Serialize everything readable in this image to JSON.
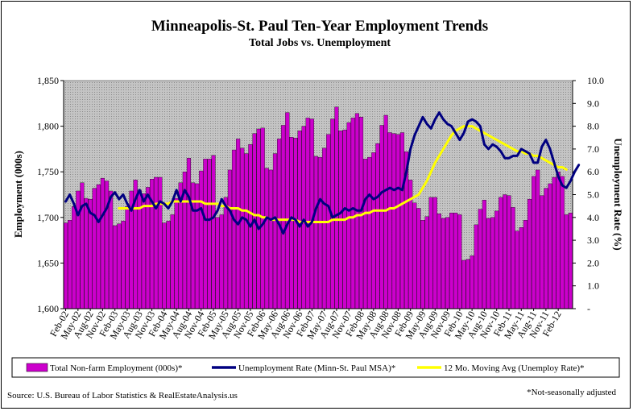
{
  "chart_data": {
    "type": "bar",
    "title": "Minneapolis-St. Paul Ten-Year Employment Trends",
    "subtitle": "Total Jobs vs. Unemployment",
    "ylabel": "Employment (000s)",
    "y2label": "Unemployment Rate (%)",
    "ylim": [
      1600,
      1850
    ],
    "y2lim": [
      0,
      10
    ],
    "yticks": [
      "1,600",
      "1,650",
      "1,700",
      "1,750",
      "1,800",
      "1,850"
    ],
    "y2ticks": [
      "-",
      "1.0",
      "2.0",
      "3.0",
      "4.0",
      "5.0",
      "6.0",
      "7.0",
      "8.0",
      "9.0",
      "10.0"
    ],
    "x_tick_labels": [
      "Feb-02",
      "May-02",
      "Aug-02",
      "Nov-02",
      "Feb-03",
      "May-03",
      "Aug-03",
      "Nov-03",
      "Feb-04",
      "May-04",
      "Aug-04",
      "Nov-04",
      "Feb-05",
      "May-05",
      "Aug-05",
      "Nov-05",
      "Feb-06",
      "May-06",
      "Aug-06",
      "Nov-06",
      "Feb-07",
      "May-07",
      "Aug-07",
      "Nov-07",
      "Feb-08",
      "May-08",
      "Aug-08",
      "Nov-08",
      "Feb-09",
      "May-09",
      "Aug-09",
      "Nov-09",
      "Feb-10",
      "May-10",
      "Aug-10",
      "Nov-10",
      "Feb-11",
      "May-11",
      "Aug-11",
      "Nov-11",
      "Feb-12"
    ],
    "legend_position": "bottom",
    "plot_background": "#c0c0c0",
    "series": [
      {
        "name": "Total Non-farm Employment (000s)*",
        "kind": "bar",
        "color": "#cc00cc",
        "values": [
          1694,
          1697,
          1712,
          1729,
          1738,
          1721,
          1720,
          1732,
          1736,
          1743,
          1740,
          1729,
          1691,
          1693,
          1696,
          1712,
          1729,
          1741,
          1730,
          1726,
          1733,
          1742,
          1744,
          1744,
          1694,
          1696,
          1703,
          1721,
          1738,
          1750,
          1765,
          1738,
          1737,
          1751,
          1764,
          1764,
          1768,
          1700,
          1703,
          1722,
          1752,
          1774,
          1786,
          1776,
          1770,
          1780,
          1792,
          1797,
          1798,
          1754,
          1752,
          1770,
          1786,
          1801,
          1815,
          1788,
          1787,
          1795,
          1800,
          1809,
          1808,
          1767,
          1766,
          1776,
          1791,
          1808,
          1821,
          1795,
          1796,
          1804,
          1809,
          1814,
          1810,
          1764,
          1766,
          1771,
          1781,
          1801,
          1812,
          1793,
          1792,
          1791,
          1793,
          1772,
          1741,
          1716,
          1710,
          1697,
          1701,
          1722,
          1722,
          1704,
          1699,
          1700,
          1705,
          1705,
          1703,
          1653,
          1654,
          1658,
          1692,
          1709,
          1719,
          1699,
          1700,
          1707,
          1722,
          1725,
          1724,
          1711,
          1685,
          1689,
          1697,
          1720,
          1745,
          1752,
          1724,
          1732,
          1737,
          1744,
          1750,
          1745,
          1703,
          1705
        ]
      },
      {
        "name": "Unemployment Rate (Minn-St. Paul MSA)*",
        "kind": "line",
        "color": "#000080",
        "values": [
          4.7,
          5.0,
          4.6,
          4.1,
          4.5,
          4.6,
          4.2,
          4.1,
          3.8,
          4.1,
          4.4,
          4.9,
          5.1,
          4.8,
          5.0,
          4.6,
          4.3,
          4.8,
          5.2,
          4.7,
          5.0,
          4.7,
          4.4,
          4.7,
          4.6,
          4.4,
          4.7,
          5.2,
          4.7,
          5.2,
          4.9,
          4.3,
          4.3,
          4.4,
          3.9,
          3.9,
          4.0,
          4.3,
          4.8,
          4.5,
          4.3,
          3.9,
          3.7,
          4.0,
          3.9,
          3.6,
          3.9,
          3.5,
          3.7,
          4.0,
          3.9,
          4.0,
          3.7,
          3.3,
          3.7,
          4.0,
          3.9,
          3.6,
          3.9,
          3.6,
          3.8,
          4.4,
          4.8,
          4.6,
          4.5,
          4.0,
          4.1,
          4.2,
          4.4,
          4.3,
          4.4,
          4.3,
          4.3,
          4.8,
          5.0,
          4.8,
          4.9,
          5.1,
          5.2,
          5.3,
          5.2,
          5.3,
          5.2,
          6.0,
          7.0,
          7.6,
          8.0,
          8.4,
          8.1,
          7.9,
          8.3,
          8.6,
          8.3,
          8.1,
          8.0,
          7.7,
          7.4,
          7.7,
          8.2,
          8.3,
          8.2,
          8.0,
          7.2,
          7.0,
          7.2,
          7.1,
          6.9,
          6.6,
          6.6,
          6.7,
          6.7,
          7.0,
          6.9,
          6.8,
          6.4,
          6.4,
          7.1,
          7.4,
          7.0,
          6.4,
          5.8,
          5.4,
          5.3,
          5.6,
          6.0,
          6.3
        ]
      },
      {
        "name": "12 Mo. Moving Avg (Unemploy Rate)*",
        "kind": "line",
        "color": "#ffff00",
        "start_index": 13,
        "values": [
          4.4,
          4.4,
          4.4,
          4.4,
          4.4,
          4.4,
          4.5,
          4.5,
          4.5,
          4.6,
          4.6,
          4.6,
          4.6,
          4.7,
          4.7,
          4.7,
          4.7,
          4.7,
          4.7,
          4.7,
          4.7,
          4.6,
          4.6,
          4.6,
          4.6,
          4.5,
          4.5,
          4.4,
          4.4,
          4.4,
          4.3,
          4.3,
          4.2,
          4.1,
          4.1,
          4.0,
          4.0,
          3.9,
          3.9,
          3.9,
          3.9,
          3.9,
          3.9,
          3.9,
          3.8,
          3.8,
          3.8,
          3.8,
          3.8,
          3.8,
          3.8,
          3.8,
          3.9,
          3.9,
          3.9,
          3.9,
          4.0,
          4.0,
          4.1,
          4.1,
          4.2,
          4.2,
          4.3,
          4.3,
          4.3,
          4.3,
          4.4,
          4.4,
          4.5,
          4.6,
          4.7,
          4.8,
          4.9,
          5.0,
          5.3,
          5.6,
          6.0,
          6.4,
          6.7,
          7.0,
          7.3,
          7.6,
          7.8,
          7.9,
          8.0,
          8.0,
          8.0,
          7.9,
          7.8,
          7.7,
          7.6,
          7.5,
          7.4,
          7.3,
          7.2,
          7.1,
          7.0,
          6.9,
          6.9,
          6.8,
          6.8,
          6.7,
          6.7,
          6.6,
          6.5,
          6.4,
          6.3,
          6.2,
          6.2,
          6.1
        ]
      }
    ]
  },
  "footer": {
    "source": "Source: U.S. Bureau of Labor Statistics & RealEstateAnalysis.us",
    "note": "*Not-seasonally adjusted"
  }
}
